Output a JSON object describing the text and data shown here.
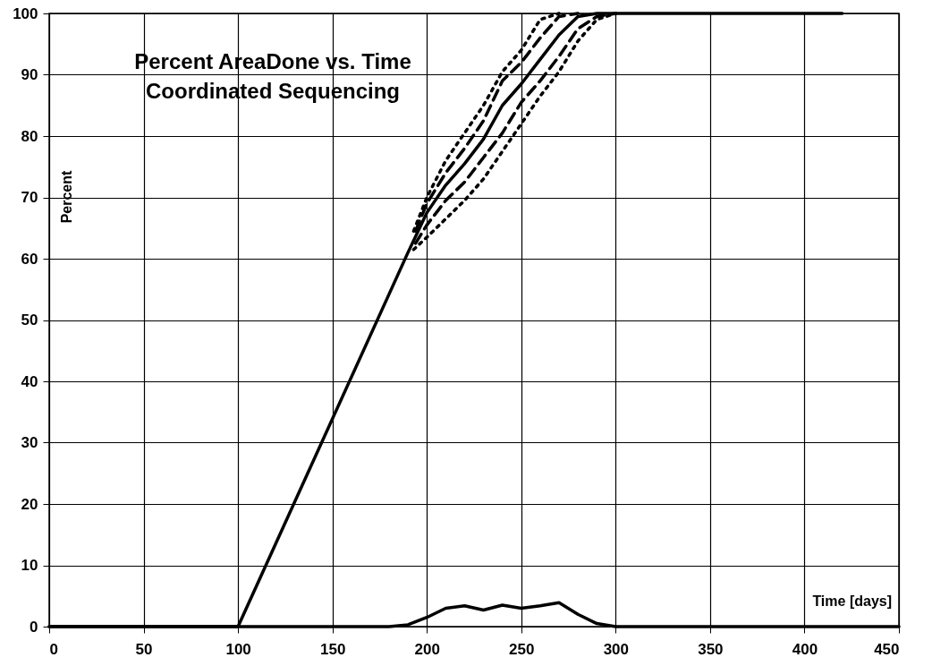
{
  "chart_data": {
    "type": "line",
    "title": [
      "Percent AreaDone vs. Time",
      "Coordinated Sequencing"
    ],
    "xlabel": "Time [days]",
    "ylabel": "Percent",
    "xlim": [
      0,
      450
    ],
    "xticks": [
      0,
      50,
      100,
      150,
      200,
      250,
      300,
      350,
      400,
      450
    ],
    "ylim": [
      0,
      100
    ],
    "yticks": [
      0,
      10,
      20,
      30,
      40,
      50,
      60,
      70,
      80,
      90,
      100
    ],
    "grid": true,
    "marker": "none",
    "series": [
      {
        "color": "#000000",
        "line_style": "solid",
        "x": [
          0,
          100,
          190,
          200,
          210,
          220,
          230,
          240,
          250,
          260,
          270,
          280,
          290,
          420
        ],
        "values": [
          0,
          0,
          61,
          67.5,
          72,
          75.5,
          79.5,
          85,
          88.5,
          92.5,
          96.5,
          99.5,
          100,
          100
        ]
      },
      {
        "color": "#000000",
        "line_style": "dashed",
        "x": [
          194,
          200,
          210,
          220,
          230,
          240,
          250,
          260,
          270,
          280
        ],
        "values": [
          64.5,
          69,
          74,
          78,
          82.5,
          89,
          92,
          96,
          99.5,
          100
        ]
      },
      {
        "color": "#000000",
        "line_style": "dashed",
        "x": [
          194,
          200,
          210,
          220,
          230,
          240,
          250,
          260,
          270,
          280,
          290,
          300
        ],
        "values": [
          62.5,
          65.5,
          69.5,
          72.5,
          76.5,
          80.5,
          85.5,
          89,
          93,
          97.5,
          99.5,
          100
        ]
      },
      {
        "color": "#000000",
        "line_style": "dotted",
        "x": [
          193,
          200,
          210,
          220,
          230,
          240,
          250,
          260,
          270
        ],
        "values": [
          64.5,
          70,
          76,
          80.5,
          85,
          90.5,
          94,
          99,
          100
        ]
      },
      {
        "color": "#000000",
        "line_style": "dotted",
        "x": [
          193,
          200,
          210,
          220,
          230,
          240,
          250,
          260,
          270,
          280,
          290,
          300
        ],
        "values": [
          61.5,
          63.5,
          66.5,
          69.5,
          73,
          77.5,
          82,
          86.5,
          90.5,
          95.5,
          99,
          100
        ]
      },
      {
        "color": "#000000",
        "line_style": "solid",
        "x": [
          0,
          180,
          190,
          200,
          210,
          220,
          230,
          240,
          250,
          260,
          270,
          280,
          290,
          300,
          450
        ],
        "values": [
          0,
          0,
          0.3,
          1.5,
          3,
          3.4,
          2.7,
          3.5,
          3,
          3.4,
          3.9,
          2,
          0.5,
          0,
          0
        ]
      }
    ]
  }
}
